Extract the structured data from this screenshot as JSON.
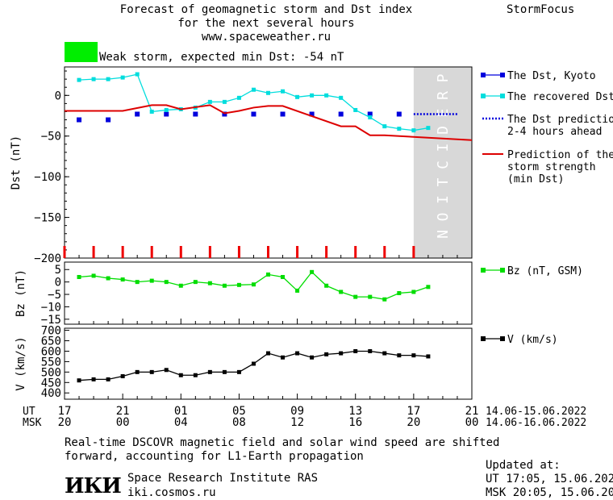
{
  "header": {
    "title_lines": [
      "Forecast of geomagnetic storm and Dst index",
      "for the next several hours",
      "www.spaceweather.ru"
    ],
    "brand": "StormFocus",
    "storm_label": "Weak storm, expected min Dst: -54 nT",
    "storm_color": "#00ee00"
  },
  "legend_dst": [
    {
      "label": "The Dst, Kyoto",
      "color": "#0000dd",
      "style": "square"
    },
    {
      "label": "The recovered Dst",
      "color": "#00dddd",
      "style": "line-square"
    },
    {
      "label": "The Dst prediction\n2-4 hours ahead",
      "color": "#0000dd",
      "style": "dotted"
    },
    {
      "label": "Prediction of the\nstorm strength\n(min Dst)",
      "color": "#dd0000",
      "style": "line"
    }
  ],
  "legend_bz": {
    "label": "Bz (nT, GSM)",
    "color": "#00dd00"
  },
  "legend_v": {
    "label": "V (km/s)",
    "color": "#000000"
  },
  "prediction_label": "PREDICTION",
  "x_axis": {
    "ut_label": "UT",
    "msk_label": "MSK",
    "ut_ticks": [
      "17",
      "21",
      "01",
      "05",
      "09",
      "13",
      "17",
      "21"
    ],
    "msk_ticks": [
      "20",
      "00",
      "04",
      "08",
      "12",
      "16",
      "20",
      "00"
    ],
    "ut_range": "14.06-15.06.2022",
    "msk_range": "14.06-16.06.2022"
  },
  "chart_data": [
    {
      "type": "line",
      "ylabel": "Dst (nT)",
      "ylim": [
        -200,
        35
      ],
      "yticks": [
        0,
        -50,
        -100,
        -150,
        -200
      ],
      "x_hours_range": [
        0,
        28
      ],
      "prediction_from_hour": 24,
      "series": [
        {
          "name": "The Dst, Kyoto",
          "style": "square",
          "color": "#0000dd",
          "x": [
            1,
            3,
            5,
            7,
            9,
            11,
            13,
            15,
            17,
            19,
            21,
            23
          ],
          "y": [
            -30,
            -30,
            -23,
            -23,
            -23,
            -23,
            -23,
            -23,
            -23,
            -23,
            -23,
            -23
          ]
        },
        {
          "name": "The recovered Dst",
          "style": "line-square",
          "color": "#00dddd",
          "x": [
            1,
            2,
            3,
            4,
            5,
            6,
            7,
            8,
            9,
            10,
            11,
            12,
            13,
            14,
            15,
            16,
            17,
            18,
            19,
            20,
            21,
            22,
            23,
            24,
            25
          ],
          "y": [
            19,
            20,
            20,
            22,
            26,
            -20,
            -18,
            -17,
            -15,
            -8,
            -8,
            -3,
            7,
            3,
            5,
            -2,
            0,
            0,
            -3,
            -18,
            -27,
            -38,
            -41,
            -43,
            -40
          ]
        },
        {
          "name": "The Dst prediction 2-4 hours ahead",
          "style": "dotted",
          "color": "#0000dd",
          "x": [
            24,
            25,
            26,
            27
          ],
          "y": [
            -23,
            -23,
            -23,
            -23
          ]
        },
        {
          "name": "Prediction of the storm strength (min Dst)",
          "style": "line",
          "color": "#dd0000",
          "x": [
            0,
            4,
            6,
            7,
            8,
            10,
            11,
            12,
            13,
            14,
            15,
            19,
            20,
            21,
            22,
            28
          ],
          "y": [
            -19,
            -19,
            -12,
            -12,
            -17,
            -12,
            -22,
            -19,
            -15,
            -13,
            -13,
            -38,
            -38,
            -49,
            -49,
            -55
          ]
        }
      ],
      "markers_x": [
        0,
        2,
        4,
        6,
        8,
        10,
        12,
        14,
        16,
        18,
        20,
        22,
        24
      ]
    },
    {
      "type": "line",
      "ylabel": "Bz (nT)",
      "ylim": [
        -17,
        8
      ],
      "yticks": [
        5,
        0,
        -5,
        -10,
        -15
      ],
      "series": [
        {
          "name": "Bz (nT, GSM)",
          "color": "#00dd00",
          "x": [
            1,
            2,
            3,
            4,
            5,
            6,
            7,
            8,
            9,
            10,
            11,
            12,
            13,
            14,
            15,
            16,
            17,
            18,
            19,
            20,
            21,
            22,
            23,
            24,
            25
          ],
          "y": [
            2,
            2.5,
            1.5,
            1,
            0,
            0.5,
            0,
            -1.5,
            0,
            -0.5,
            -1.5,
            -1.2,
            -1,
            3,
            2,
            -3.5,
            4,
            -1.5,
            -4,
            -6,
            -6,
            -7,
            -4.5,
            -4,
            -2
          ]
        }
      ]
    },
    {
      "type": "line",
      "ylabel": "V (km/s)",
      "ylim": [
        370,
        710
      ],
      "yticks": [
        700,
        650,
        600,
        550,
        500,
        450,
        400
      ],
      "series": [
        {
          "name": "V (km/s)",
          "color": "#000000",
          "x": [
            1,
            2,
            3,
            4,
            5,
            6,
            7,
            8,
            9,
            10,
            11,
            12,
            13,
            14,
            15,
            16,
            17,
            18,
            19,
            20,
            21,
            22,
            23,
            24,
            25
          ],
          "y": [
            460,
            465,
            465,
            480,
            500,
            500,
            510,
            485,
            485,
            500,
            500,
            500,
            540,
            590,
            570,
            590,
            570,
            585,
            590,
            600,
            600,
            590,
            580,
            580,
            575
          ]
        }
      ]
    }
  ],
  "footer": {
    "note_lines": [
      "Real-time DSCOVR magnetic field and solar wind speed are shifted",
      "forward, accounting for L1-Earth propagation"
    ],
    "logo_text": "ИКИ",
    "institute": "Space Research Institute RAS",
    "site": "iki.cosmos.ru",
    "updated_label": "Updated at:",
    "updated_ut": "UT   17:05, 15.06.2022",
    "updated_msk": "MSK 20:05, 15.06.2022"
  }
}
